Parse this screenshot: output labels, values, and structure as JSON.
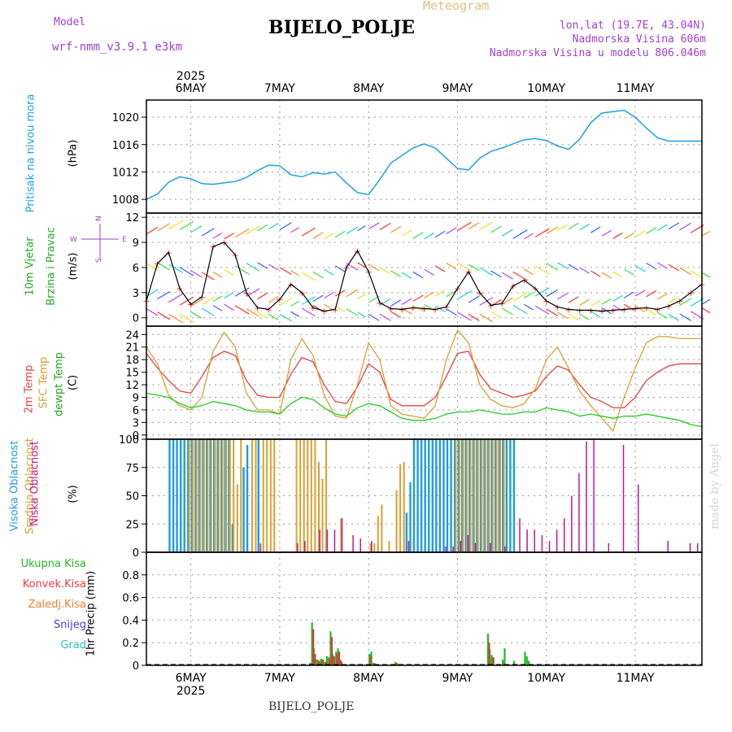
{
  "header": {
    "model_label": "Model",
    "model_name": "wrf-nmm_v3.9.1  e3km",
    "title": "BIJELO_POLJE",
    "subtitle": "Meteogram",
    "coords": "lon,lat (19.7E, 43.04N)",
    "altitude": "Nadmorska Visina 606m",
    "model_altitude": "Nadmorska Visina u modelu 806.046m",
    "footer_station": "BIJELO_POLJE",
    "watermark": "made by Angel"
  },
  "colors": {
    "pressure": "#1ea0e6",
    "temp2m": "#e84040",
    "sfc": "#d8a030",
    "dew": "#22cc22",
    "purple": "#a040d0",
    "high_cloud": "#1e9be0",
    "mid_cloud": "#d8a030",
    "low_cloud": "#c01890",
    "precip_total": "#22bb22",
    "precip_conv": "#d04040"
  },
  "axes": {
    "year": "2025",
    "days": [
      "6MAY",
      "7MAY",
      "8MAY",
      "9MAY",
      "10MAY",
      "11MAY"
    ],
    "compass": {
      "n": "N",
      "s": "S",
      "w": "W",
      "e": "E"
    }
  },
  "panels": {
    "pressure": {
      "label": "Pritisak na nivou mora",
      "unit": "(hPa)"
    },
    "wind": {
      "label1": "10m Vjetar",
      "label2": "Brzina i Pravac",
      "unit": "(m/s)"
    },
    "temp": {
      "label1": "2m Temp",
      "label2": "SFC Temp",
      "label3": "dewpt Temp",
      "unit": "(C)"
    },
    "cloud": {
      "label1": "Visoka Oblacnost",
      "label2": "Srednja Oblacnost",
      "label3": "Niska Oblacnost",
      "unit": "(%)"
    },
    "precip": {
      "unit": "1hr Precip (mm)",
      "legend": [
        "Ukupna Kisa",
        "Konvek.Kisa",
        "Zaledj.Kisa",
        "Snijeg",
        "Grad"
      ],
      "legend_colors": [
        "#22bb22",
        "#e84040",
        "#f08030",
        "#4040e0",
        "#20c0c0"
      ]
    }
  },
  "chart_data": [
    {
      "type": "line",
      "title": "Pritisak na nivou mora",
      "ylabel": "(hPa)",
      "x_unit": "hours from 5 May 12:00",
      "ylim": [
        1006,
        1022.5
      ],
      "yticks": [
        1008,
        1012,
        1016,
        1020
      ],
      "x": [
        0,
        3,
        6,
        9,
        12,
        15,
        18,
        21,
        24,
        27,
        30,
        33,
        36,
        39,
        42,
        45,
        48,
        51,
        54,
        57,
        60,
        63,
        66,
        69,
        72,
        75,
        78,
        81,
        84,
        87,
        90,
        93,
        96,
        99,
        102,
        105,
        108,
        111,
        114,
        117,
        120,
        123,
        126,
        129,
        132,
        135,
        138,
        141,
        144,
        147,
        150
      ],
      "values": [
        1008.0,
        1008.8,
        1010.5,
        1011.3,
        1011.0,
        1010.3,
        1010.2,
        1010.4,
        1010.6,
        1011.2,
        1012.2,
        1013.0,
        1012.9,
        1011.6,
        1011.3,
        1011.9,
        1011.7,
        1012.0,
        1010.4,
        1009.0,
        1008.7,
        1010.9,
        1013.3,
        1014.4,
        1015.5,
        1016.1,
        1015.5,
        1014.0,
        1012.5,
        1012.3,
        1014.0,
        1015.0,
        1015.5,
        1016.1,
        1016.7,
        1016.9,
        1016.6,
        1015.8,
        1015.3,
        1016.8,
        1019.2,
        1020.6,
        1020.8,
        1021.0,
        1020.0,
        1018.4,
        1017.0,
        1016.5,
        1016.5,
        1016.5,
        1016.5
      ]
    },
    {
      "type": "line",
      "title": "10m Vjetar Brzina i Pravac",
      "ylabel": "(m/s)",
      "ylim": [
        -1,
        12.5
      ],
      "yticks": [
        0,
        3,
        6,
        9,
        12
      ],
      "x": [
        0,
        3,
        6,
        9,
        12,
        15,
        18,
        21,
        24,
        27,
        30,
        33,
        36,
        39,
        42,
        45,
        48,
        51,
        54,
        57,
        60,
        63,
        66,
        69,
        72,
        75,
        78,
        81,
        84,
        87,
        90,
        93,
        96,
        99,
        102,
        105,
        108,
        111,
        114,
        117,
        120,
        123,
        126,
        129,
        132,
        135,
        138,
        141,
        144,
        147,
        150
      ],
      "values": [
        2.0,
        6.5,
        7.8,
        3.5,
        1.6,
        2.5,
        8.5,
        9.0,
        7.5,
        3.0,
        1.2,
        1.0,
        2.2,
        4.0,
        3.0,
        1.2,
        0.8,
        1.0,
        6.0,
        8.0,
        5.5,
        1.8,
        1.1,
        1.0,
        1.2,
        1.1,
        1.0,
        1.3,
        3.5,
        5.5,
        3.0,
        1.5,
        1.7,
        3.8,
        4.5,
        3.5,
        2.0,
        1.3,
        1.0,
        0.9,
        0.9,
        0.8,
        0.9,
        1.0,
        1.1,
        1.2,
        1.0,
        1.4,
        2.0,
        3.0,
        4.0
      ]
    },
    {
      "type": "line",
      "title": "2m Temp / SFC Temp / dewpt Temp",
      "ylabel": "(C)",
      "ylim": [
        -1,
        26
      ],
      "yticks": [
        0,
        3,
        6,
        9,
        12,
        15,
        18,
        21,
        24
      ],
      "x": [
        0,
        3,
        6,
        9,
        12,
        15,
        18,
        21,
        24,
        27,
        30,
        33,
        36,
        39,
        42,
        45,
        48,
        51,
        54,
        57,
        60,
        63,
        66,
        69,
        72,
        75,
        78,
        81,
        84,
        87,
        90,
        93,
        96,
        99,
        102,
        105,
        108,
        111,
        114,
        117,
        120,
        123,
        126,
        129,
        132,
        135,
        138,
        141,
        144,
        147,
        150
      ],
      "series": [
        {
          "name": "2m Temp",
          "values": [
            19.5,
            16.0,
            13.0,
            10.5,
            10.0,
            14.0,
            18.5,
            20.0,
            19.0,
            13.0,
            9.5,
            9.0,
            9.0,
            14.5,
            18.5,
            17.5,
            12.0,
            8.0,
            7.5,
            11.5,
            17.0,
            15.0,
            8.5,
            7.0,
            7.0,
            7.0,
            9.0,
            14.0,
            19.5,
            20.0,
            14.5,
            11.0,
            10.0,
            9.0,
            9.5,
            10.5,
            14.0,
            16.5,
            15.5,
            12.0,
            9.0,
            8.0,
            6.5,
            6.5,
            9.0,
            13.0,
            15.0,
            16.5,
            17.0,
            17.0,
            17.0
          ]
        },
        {
          "name": "SFC Temp",
          "values": [
            21.0,
            17.0,
            9.5,
            7.0,
            6.0,
            9.0,
            20.0,
            24.5,
            21.0,
            10.0,
            6.0,
            6.0,
            5.0,
            18.0,
            23.0,
            19.0,
            9.5,
            4.5,
            4.0,
            12.0,
            22.0,
            18.0,
            7.0,
            5.0,
            4.5,
            4.0,
            7.0,
            18.0,
            25.0,
            22.0,
            12.0,
            8.5,
            7.0,
            6.5,
            7.5,
            11.0,
            18.0,
            21.0,
            16.0,
            10.5,
            7.0,
            4.0,
            1.0,
            9.0,
            16.0,
            22.0,
            23.5,
            23.5,
            23.0,
            23.0,
            23.0
          ]
        },
        {
          "name": "dewpt Temp",
          "values": [
            10.0,
            9.5,
            9.0,
            7.5,
            6.5,
            7.0,
            8.0,
            7.5,
            7.0,
            6.0,
            5.5,
            5.5,
            5.0,
            7.5,
            9.0,
            8.5,
            6.5,
            5.0,
            4.5,
            6.5,
            7.5,
            7.0,
            5.5,
            4.0,
            3.5,
            3.5,
            4.0,
            5.0,
            5.5,
            5.5,
            6.0,
            5.5,
            5.0,
            5.0,
            5.5,
            5.5,
            6.5,
            6.0,
            5.5,
            4.5,
            5.0,
            4.5,
            4.0,
            4.5,
            4.5,
            5.0,
            4.5,
            4.0,
            3.5,
            2.5,
            2.0
          ]
        }
      ]
    },
    {
      "type": "bar",
      "title": "Visoka / Srednja / Niska Oblacnost",
      "ylabel": "(%)",
      "ylim": [
        0,
        100
      ],
      "yticks": [
        0,
        25,
        50,
        75,
        100
      ],
      "series": [
        {
          "name": "Visoka Oblacnost",
          "x": [
            6,
            7,
            8,
            9,
            10,
            11,
            12,
            13,
            14,
            15,
            16,
            17,
            18,
            19,
            20,
            21,
            22,
            23,
            26,
            27,
            30,
            70,
            71,
            72,
            73,
            74,
            75,
            76,
            77,
            78,
            79,
            80,
            81,
            82,
            83,
            84,
            85,
            86,
            87,
            88,
            89,
            90,
            91,
            92,
            93,
            94,
            95,
            96,
            97,
            98,
            99
          ],
          "values": [
            100,
            100,
            100,
            100,
            100,
            100,
            100,
            100,
            100,
            100,
            100,
            100,
            100,
            100,
            100,
            100,
            100,
            25,
            75,
            95,
            100,
            35,
            62,
            100,
            100,
            100,
            100,
            100,
            100,
            100,
            100,
            100,
            100,
            100,
            100,
            100,
            100,
            100,
            100,
            100,
            100,
            100,
            100,
            100,
            100,
            100,
            100,
            100,
            100,
            100,
            100
          ]
        },
        {
          "name": "Srednja Oblacnost",
          "x": [
            11,
            12,
            13,
            14,
            15,
            16,
            17,
            18,
            19,
            20,
            21,
            22,
            23,
            24,
            25,
            28,
            29,
            31,
            32,
            33,
            34,
            40,
            41,
            42,
            43,
            44,
            45,
            46,
            47,
            48,
            52,
            60,
            61,
            62,
            63,
            65,
            67,
            68,
            69,
            83,
            84,
            85,
            86,
            87,
            88,
            89,
            90,
            91,
            92,
            93,
            94,
            95,
            96
          ],
          "values": [
            100,
            100,
            100,
            100,
            100,
            100,
            100,
            100,
            100,
            100,
            100,
            100,
            100,
            60,
            100,
            100,
            100,
            100,
            100,
            100,
            100,
            100,
            100,
            100,
            100,
            100,
            100,
            80,
            65,
            100,
            30,
            8,
            8,
            32,
            42,
            10,
            55,
            78,
            80,
            100,
            100,
            100,
            100,
            100,
            100,
            100,
            100,
            100,
            100,
            100,
            100,
            100,
            100
          ]
        },
        {
          "name": "Niska Oblacnost",
          "x": [
            30,
            40,
            42,
            46,
            48,
            50,
            52,
            55,
            57,
            60,
            70,
            80,
            82,
            84,
            86,
            88,
            92,
            96,
            100,
            102,
            104,
            106,
            108,
            110,
            112,
            114,
            116,
            118,
            120,
            124,
            128,
            132,
            140,
            146,
            148
          ],
          "values": [
            8,
            8,
            10,
            20,
            20,
            20,
            30,
            15,
            12,
            10,
            10,
            5,
            5,
            10,
            15,
            8,
            8,
            5,
            30,
            20,
            20,
            15,
            10,
            20,
            30,
            50,
            70,
            98,
            100,
            8,
            95,
            60,
            10,
            8,
            8
          ]
        }
      ]
    },
    {
      "type": "bar",
      "title": "1hr Precip",
      "ylabel": "1hr Precip (mm)",
      "ylim": [
        0,
        1.0
      ],
      "yticks": [
        0,
        0.2,
        0.4,
        0.6,
        0.8
      ],
      "series": [
        {
          "name": "Ukupna Kisa",
          "x": [
            44,
            44.5,
            45,
            45.5,
            46,
            46.5,
            47,
            47.5,
            48,
            48.5,
            49,
            49.5,
            50,
            50.5,
            51,
            51.5,
            52,
            52.5,
            60,
            60.5,
            61,
            67,
            67.5,
            92,
            92.5,
            93,
            93.5,
            96,
            96.5,
            99,
            102,
            102.5,
            103
          ],
          "values": [
            0.02,
            0.38,
            0.15,
            0.05,
            0.05,
            0.04,
            0.06,
            0.05,
            0.03,
            0.08,
            0.07,
            0.3,
            0.1,
            0.08,
            0.12,
            0.15,
            0.05,
            0.03,
            0.1,
            0.12,
            0.02,
            0.03,
            0.02,
            0.28,
            0.14,
            0.09,
            0.07,
            0.05,
            0.15,
            0.04,
            0.12,
            0.08,
            0.04
          ]
        },
        {
          "name": "Konvek.Kisa",
          "x": [
            44.5,
            45,
            46,
            47,
            48,
            49,
            49.5,
            50,
            51,
            51.5,
            52,
            60,
            61,
            67,
            92,
            93,
            96
          ],
          "values": [
            0.32,
            0.1,
            0.04,
            0.05,
            0.03,
            0.06,
            0.25,
            0.08,
            0.1,
            0.12,
            0.04,
            0.08,
            0.02,
            0.02,
            0.2,
            0.07,
            0.02
          ]
        }
      ]
    }
  ]
}
